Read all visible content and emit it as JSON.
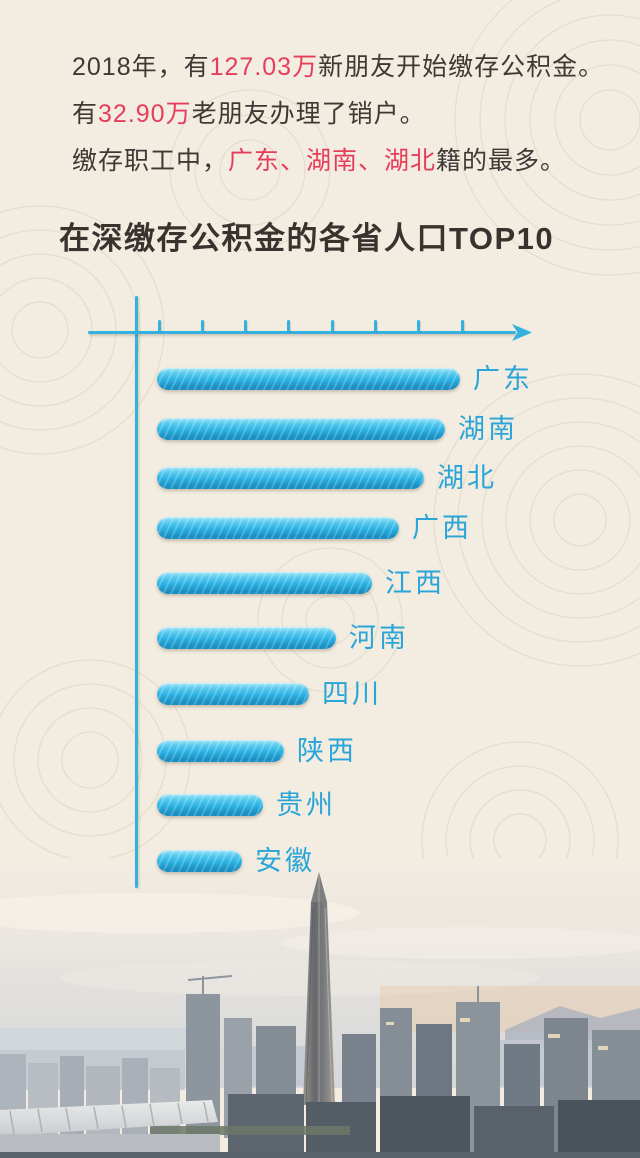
{
  "colors": {
    "background": "#f2ece1",
    "accent_red": "#e63e5a",
    "text_dark": "#3d3935",
    "bar_blue": "#29b0e2",
    "axis_blue": "#33b1e0",
    "label_blue": "#2aa5d8"
  },
  "intro": {
    "line1": {
      "pre": "2018年，有",
      "highlight": "127.03万",
      "post": "新朋友开始缴存公积金。"
    },
    "line2": {
      "pre": "有",
      "highlight": "32.90万",
      "post": "老朋友办理了销户。"
    },
    "line3": {
      "pre": "缴存职工中，",
      "highlight": "广东、湖南、湖北",
      "post": "籍的最多。"
    }
  },
  "title": "在深缴存公积金的各省人口TOP10",
  "chart_data": {
    "type": "bar",
    "orientation": "horizontal",
    "title": "在深缴存公积金的各省人口TOP10",
    "categories": [
      "广东",
      "湖南",
      "湖北",
      "广西",
      "江西",
      "河南",
      "四川",
      "陕西",
      "贵州",
      "安徽"
    ],
    "values_relative": [
      100,
      95,
      88,
      80,
      71,
      59,
      50,
      42,
      35,
      28
    ],
    "value_labels_shown": false,
    "axis": {
      "tick_count": 8,
      "tick_labels_shown": false,
      "arrow": true
    },
    "bar_color": "#29b0e2",
    "label_color": "#2aa5d8",
    "legend": "none"
  }
}
